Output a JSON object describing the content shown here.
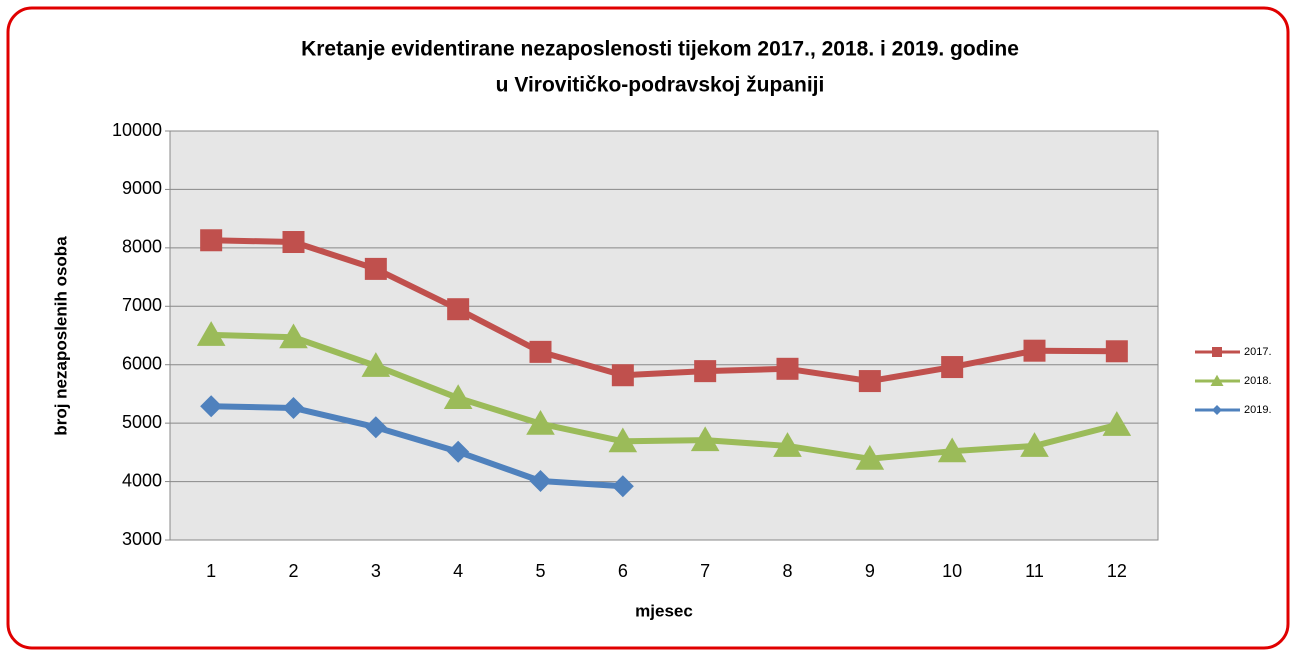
{
  "chart_data": {
    "type": "line",
    "title": [
      "Kretanje evidentirane nezaposlenosti tijekom 2017., 2018. i 2019. godine",
      "u Virovitičko-podravskoj županiji"
    ],
    "xlabel": "mjesec",
    "ylabel": "broj nezaposlenih osoba",
    "categories": [
      "1",
      "2",
      "3",
      "4",
      "5",
      "6",
      "7",
      "8",
      "9",
      "10",
      "11",
      "12"
    ],
    "series": [
      {
        "name": "2017.",
        "color": "#c0504d",
        "marker": "square",
        "values": [
          8130,
          8100,
          7640,
          6950,
          6220,
          5820,
          5890,
          5930,
          5720,
          5960,
          6240,
          6230
        ]
      },
      {
        "name": "2018.",
        "color": "#9bbb59",
        "marker": "triangle",
        "values": [
          6510,
          6470,
          5980,
          5430,
          4990,
          4690,
          4710,
          4610,
          4390,
          4520,
          4610,
          4970
        ]
      },
      {
        "name": "2019.",
        "color": "#4f81bd",
        "marker": "diamond",
        "values": [
          5290,
          5260,
          4930,
          4510,
          4010,
          3920,
          null,
          null,
          null,
          null,
          null,
          null
        ]
      }
    ],
    "ylim": [
      3000,
      10000
    ],
    "yticks": [
      3000,
      4000,
      5000,
      6000,
      7000,
      8000,
      9000,
      10000
    ],
    "grid": true,
    "legend": "right"
  }
}
